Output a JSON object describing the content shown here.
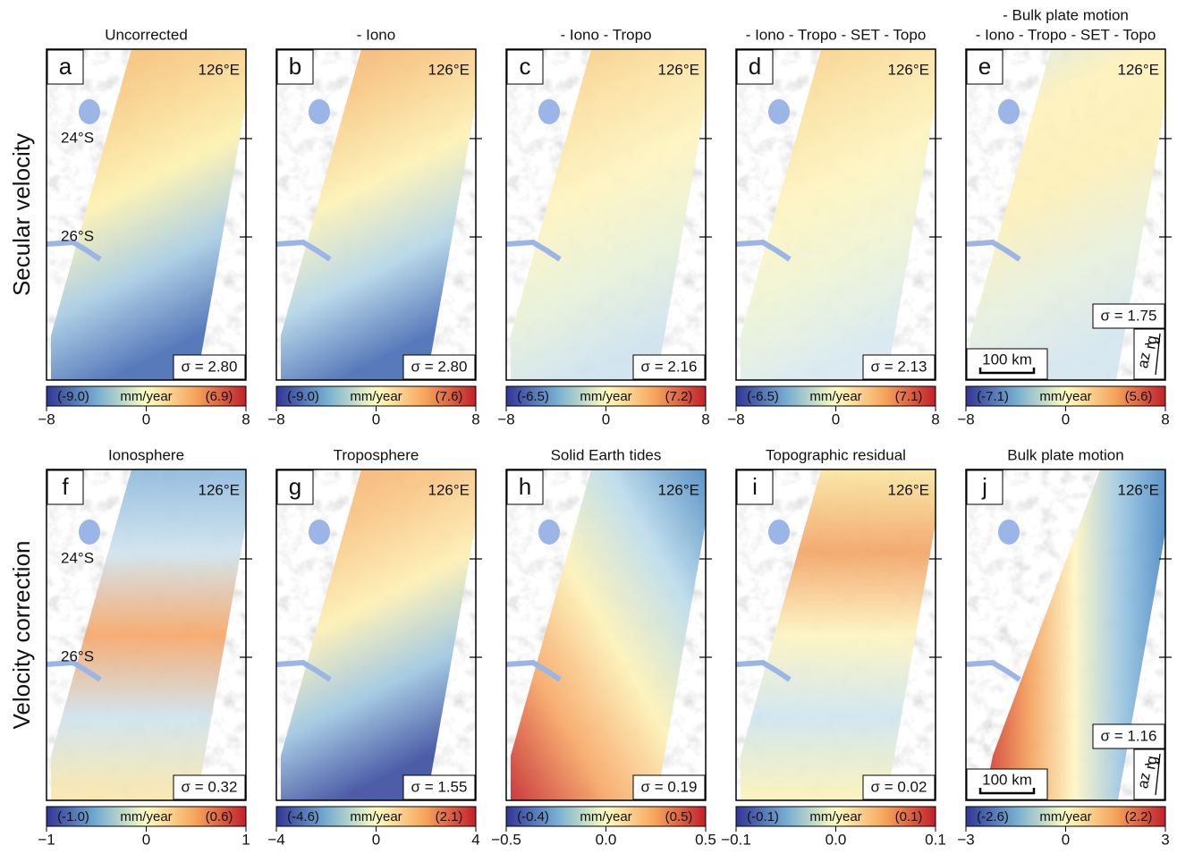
{
  "row_labels": [
    "Secular velocity",
    "Velocity correction"
  ],
  "panels": [
    {
      "letter": "a",
      "title": [
        "Uncorrected"
      ],
      "lon": "126°E",
      "lat": [
        "24°S",
        "26°S"
      ],
      "sigma": "σ = 2.80",
      "colorbar": {
        "min_label": "(-9.0)",
        "unit": "mm/year",
        "max_label": "(6.9)",
        "ticks": [
          "−8",
          "0",
          "8"
        ]
      }
    },
    {
      "letter": "b",
      "title": [
        "- Iono"
      ],
      "lon": "126°E",
      "sigma": "σ = 2.80",
      "colorbar": {
        "min_label": "(-9.0)",
        "unit": "mm/year",
        "max_label": "(7.6)",
        "ticks": [
          "−8",
          "0",
          "8"
        ]
      }
    },
    {
      "letter": "c",
      "title": [
        "- Iono - Tropo"
      ],
      "lon": "126°E",
      "sigma": "σ = 2.16",
      "colorbar": {
        "min_label": "(-6.5)",
        "unit": "mm/year",
        "max_label": "(7.2)",
        "ticks": [
          "−8",
          "0",
          "8"
        ]
      }
    },
    {
      "letter": "d",
      "title": [
        "- Iono - Tropo - SET - Topo"
      ],
      "lon": "126°E",
      "sigma": "σ = 2.13",
      "colorbar": {
        "min_label": "(-6.5)",
        "unit": "mm/year",
        "max_label": "(7.1)",
        "ticks": [
          "−8",
          "0",
          "8"
        ]
      }
    },
    {
      "letter": "e",
      "title": [
        "- Bulk plate motion",
        "- Iono - Tropo - SET - Topo"
      ],
      "lon": "126°E",
      "sigma": "σ = 1.75",
      "scale_bar": "100 km",
      "az": "az",
      "rg": "rg",
      "colorbar": {
        "min_label": "(-7.1)",
        "unit": "mm/year",
        "max_label": "(5.6)",
        "ticks": [
          "−8",
          "0",
          "8"
        ]
      }
    },
    {
      "letter": "f",
      "title": [
        "Ionosphere"
      ],
      "lon": "126°E",
      "lat": [
        "24°S",
        "26°S"
      ],
      "sigma": "σ = 0.32",
      "colorbar": {
        "min_label": "(-1.0)",
        "unit": "mm/year",
        "max_label": "(0.6)",
        "ticks": [
          "−1",
          "0",
          "1"
        ]
      }
    },
    {
      "letter": "g",
      "title": [
        "Troposphere"
      ],
      "lon": "126°E",
      "sigma": "σ = 1.55",
      "colorbar": {
        "min_label": "(-4.6)",
        "unit": "mm/year",
        "max_label": "(2.1)",
        "ticks": [
          "−4",
          "0",
          "4"
        ]
      }
    },
    {
      "letter": "h",
      "title": [
        "Solid Earth tides"
      ],
      "lon": "126°E",
      "sigma": "σ = 0.19",
      "colorbar": {
        "min_label": "(-0.4)",
        "unit": "mm/year",
        "max_label": "(0.5)",
        "ticks": [
          "−0.5",
          "0.0",
          "0.5"
        ]
      }
    },
    {
      "letter": "i",
      "title": [
        "Topographic residual"
      ],
      "lon": "126°E",
      "sigma": "σ = 0.02",
      "colorbar": {
        "min_label": "(-0.1)",
        "unit": "mm/year",
        "max_label": "(0.1)",
        "ticks": [
          "−0.1",
          "0.0",
          "0.1"
        ]
      }
    },
    {
      "letter": "j",
      "title": [
        "Bulk plate motion"
      ],
      "lon": "126°E",
      "sigma": "σ = 1.16",
      "scale_bar": "100 km",
      "az": "az",
      "rg": "rg",
      "colorbar": {
        "min_label": "(-2.6)",
        "unit": "mm/year",
        "max_label": "(2.2)",
        "ticks": [
          "−3",
          "0",
          "3"
        ]
      }
    }
  ]
}
